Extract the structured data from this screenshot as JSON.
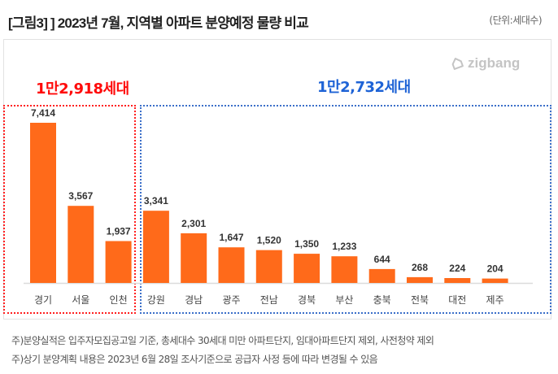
{
  "header": {
    "title": "[그림3] ] 2023년 7월, 지역별 아파트 분양예정 물량 비교",
    "unit": "(단위:세대수)"
  },
  "logo": {
    "text": "zigbang",
    "icon": "zigbang-logo-icon"
  },
  "groups": [
    {
      "label": "1만2,918세대",
      "color": "#ff0a0a"
    },
    {
      "label": "1만2,732세대",
      "color": "#1e63d6"
    }
  ],
  "chart_data": {
    "type": "bar",
    "title": "2023년 7월, 지역별 아파트 분양예정 물량 비교",
    "xlabel": "",
    "ylabel": "세대수",
    "ylim": [
      0,
      7800
    ],
    "grid": false,
    "bar_color": "#ff6a1a",
    "categories": [
      "경기",
      "서울",
      "인천",
      "강원",
      "경남",
      "광주",
      "전남",
      "경북",
      "부산",
      "충북",
      "전북",
      "대전",
      "제주"
    ],
    "values": [
      7414,
      3567,
      1937,
      3341,
      2301,
      1647,
      1520,
      1350,
      1233,
      644,
      268,
      224,
      204
    ],
    "data_labels": [
      "7,414",
      "3,567",
      "1,937",
      "3,341",
      "2,301",
      "1,647",
      "1,520",
      "1,350",
      "1,233",
      "644",
      "268",
      "224",
      "204"
    ],
    "annotations": [
      "1만2,918세대",
      "1만2,732세대"
    ]
  },
  "notes": [
    "주)분양실적은 입주자모집공고일 기준, 총세대수 30세대 미만 아파트단지, 임대아파트단지 제외, 사전청약 제외",
    "주)상기 분양계획 내용은 2023년 6월 28일 조사기준으로 공급자 사정 등에 따라 변경될 수 있음"
  ]
}
